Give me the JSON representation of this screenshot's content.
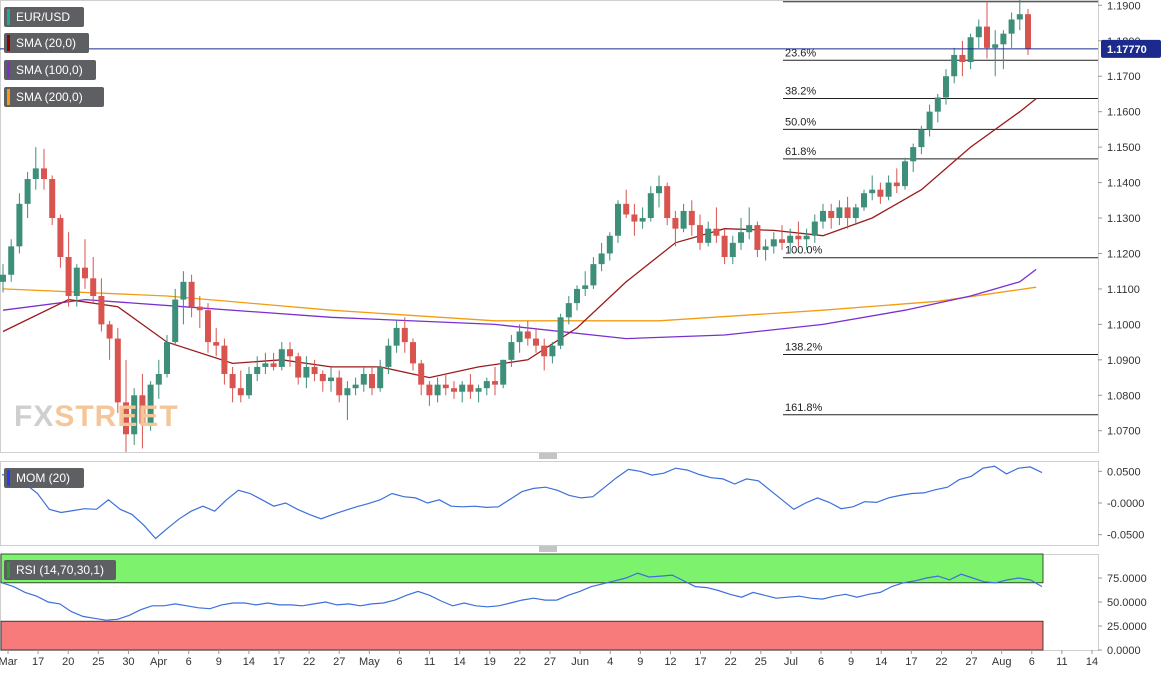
{
  "legends": {
    "main": [
      {
        "label": "EUR/USD",
        "color": "#26a69a"
      },
      {
        "label": "SMA (20,0)",
        "color": "#8b0000"
      },
      {
        "label": "SMA (100,0)",
        "color": "#7b2fd1"
      },
      {
        "label": "SMA (200,0)",
        "color": "#f39c12"
      }
    ],
    "mom": {
      "label": "MOM (20)",
      "color": "#1f3cff"
    },
    "rsi": {
      "label": "RSI (14,70,30,1)",
      "color": "#2e9e2e"
    }
  },
  "price_badge": "1.17770",
  "watermark": {
    "part1": "FX",
    "part2": "STREET"
  },
  "colors": {
    "up": "#3d8f7a",
    "down": "#d9534f",
    "sma20": "#9b1b1b",
    "sma100": "#7b2fd1",
    "sma200": "#f39c12",
    "mom": "#3d6fdc",
    "rsi": "#3d6fdc",
    "rsi_overbought": "#7df26c",
    "rsi_oversold": "#f77b7b",
    "price_line": "#1b2a8c"
  },
  "chart_data": [
    {
      "type": "candlestick",
      "title": "EUR/USD",
      "ylim": [
        1.064,
        1.1915
      ],
      "y_ticks": [
        "1.1900",
        "1.1800",
        "1.1700",
        "1.1600",
        "1.1500",
        "1.1400",
        "1.1300",
        "1.1200",
        "1.1100",
        "1.1000",
        "1.0900",
        "1.0800",
        "1.0700"
      ],
      "x_ticks": [
        "Mar",
        "17",
        "20",
        "25",
        "30",
        "Apr",
        "6",
        "9",
        "14",
        "17",
        "22",
        "27",
        "May",
        "6",
        "11",
        "14",
        "19",
        "22",
        "27",
        "Jun",
        "4",
        "9",
        "12",
        "17",
        "22",
        "25",
        "Jul",
        "6",
        "9",
        "14",
        "17",
        "22",
        "27",
        "Aug",
        "6",
        "11",
        "14"
      ],
      "fibonacci": [
        {
          "label": "23.6%",
          "value": 1.1745
        },
        {
          "label": "38.2%",
          "value": 1.1637
        },
        {
          "label": "50.0%",
          "value": 1.155
        },
        {
          "label": "61.8%",
          "value": 1.1467
        },
        {
          "label": "100.0%",
          "value": 1.1188
        },
        {
          "label": "138.2%",
          "value": 1.0915
        },
        {
          "label": "161.8%",
          "value": 1.0745
        }
      ],
      "top_level_value": 1.191,
      "current_price": 1.1777,
      "ohlc": [
        [
          1.112,
          1.117,
          1.109,
          1.114
        ],
        [
          1.114,
          1.124,
          1.112,
          1.122
        ],
        [
          1.122,
          1.137,
          1.12,
          1.134
        ],
        [
          1.134,
          1.143,
          1.13,
          1.141
        ],
        [
          1.141,
          1.15,
          1.138,
          1.144
        ],
        [
          1.144,
          1.1495,
          1.138,
          1.141
        ],
        [
          1.141,
          1.142,
          1.128,
          1.13
        ],
        [
          1.13,
          1.131,
          1.116,
          1.119
        ],
        [
          1.119,
          1.126,
          1.105,
          1.108
        ],
        [
          1.108,
          1.117,
          1.105,
          1.116
        ],
        [
          1.116,
          1.124,
          1.11,
          1.113
        ],
        [
          1.113,
          1.119,
          1.106,
          1.108
        ],
        [
          1.108,
          1.113,
          1.098,
          1.1
        ],
        [
          1.1,
          1.101,
          1.09,
          1.096
        ],
        [
          1.096,
          1.099,
          1.075,
          1.078
        ],
        [
          1.078,
          1.09,
          1.064,
          1.069
        ],
        [
          1.069,
          1.082,
          1.066,
          1.08
        ],
        [
          1.08,
          1.086,
          1.065,
          1.072
        ],
        [
          1.072,
          1.084,
          1.07,
          1.083
        ],
        [
          1.083,
          1.09,
          1.079,
          1.086
        ],
        [
          1.086,
          1.097,
          1.085,
          1.095
        ],
        [
          1.095,
          1.11,
          1.094,
          1.107
        ],
        [
          1.107,
          1.115,
          1.1,
          1.112
        ],
        [
          1.112,
          1.114,
          1.102,
          1.105
        ],
        [
          1.105,
          1.108,
          1.099,
          1.104
        ],
        [
          1.104,
          1.106,
          1.092,
          1.095
        ],
        [
          1.095,
          1.099,
          1.091,
          1.094
        ],
        [
          1.094,
          1.096,
          1.083,
          1.086
        ],
        [
          1.086,
          1.088,
          1.078,
          1.082
        ],
        [
          1.082,
          1.087,
          1.078,
          1.08
        ],
        [
          1.08,
          1.088,
          1.079,
          1.086
        ],
        [
          1.086,
          1.091,
          1.084,
          1.088
        ],
        [
          1.088,
          1.092,
          1.086,
          1.089
        ],
        [
          1.089,
          1.092,
          1.087,
          1.088
        ],
        [
          1.088,
          1.095,
          1.087,
          1.093
        ],
        [
          1.093,
          1.095,
          1.088,
          1.091
        ],
        [
          1.091,
          1.092,
          1.083,
          1.085
        ],
        [
          1.085,
          1.091,
          1.082,
          1.088
        ],
        [
          1.088,
          1.09,
          1.084,
          1.086
        ],
        [
          1.086,
          1.087,
          1.081,
          1.084
        ],
        [
          1.084,
          1.088,
          1.081,
          1.085
        ],
        [
          1.085,
          1.087,
          1.078,
          1.08
        ],
        [
          1.08,
          1.084,
          1.073,
          1.082
        ],
        [
          1.082,
          1.085,
          1.08,
          1.083
        ],
        [
          1.083,
          1.088,
          1.081,
          1.086
        ],
        [
          1.086,
          1.088,
          1.08,
          1.082
        ],
        [
          1.082,
          1.09,
          1.081,
          1.088
        ],
        [
          1.088,
          1.096,
          1.086,
          1.094
        ],
        [
          1.094,
          1.101,
          1.092,
          1.099
        ],
        [
          1.099,
          1.102,
          1.092,
          1.095
        ],
        [
          1.095,
          1.096,
          1.087,
          1.089
        ],
        [
          1.089,
          1.09,
          1.08,
          1.083
        ],
        [
          1.083,
          1.084,
          1.077,
          1.08
        ],
        [
          1.08,
          1.085,
          1.078,
          1.083
        ],
        [
          1.083,
          1.086,
          1.08,
          1.082
        ],
        [
          1.082,
          1.084,
          1.079,
          1.081
        ],
        [
          1.081,
          1.084,
          1.078,
          1.083
        ],
        [
          1.083,
          1.086,
          1.079,
          1.081
        ],
        [
          1.081,
          1.083,
          1.078,
          1.082
        ],
        [
          1.082,
          1.085,
          1.08,
          1.084
        ],
        [
          1.084,
          1.088,
          1.08,
          1.083
        ],
        [
          1.083,
          1.09,
          1.082,
          1.09
        ],
        [
          1.09,
          1.097,
          1.088,
          1.095
        ],
        [
          1.095,
          1.1,
          1.092,
          1.098
        ],
        [
          1.098,
          1.101,
          1.094,
          1.096
        ],
        [
          1.096,
          1.099,
          1.092,
          1.094
        ],
        [
          1.094,
          1.096,
          1.087,
          1.091
        ],
        [
          1.091,
          1.095,
          1.089,
          1.094
        ],
        [
          1.094,
          1.103,
          1.093,
          1.102
        ],
        [
          1.102,
          1.108,
          1.1,
          1.106
        ],
        [
          1.106,
          1.111,
          1.104,
          1.11
        ],
        [
          1.11,
          1.115,
          1.108,
          1.111
        ],
        [
          1.111,
          1.119,
          1.11,
          1.117
        ],
        [
          1.117,
          1.123,
          1.115,
          1.12
        ],
        [
          1.12,
          1.126,
          1.118,
          1.125
        ],
        [
          1.125,
          1.135,
          1.123,
          1.134
        ],
        [
          1.134,
          1.138,
          1.13,
          1.131
        ],
        [
          1.131,
          1.134,
          1.125,
          1.129
        ],
        [
          1.129,
          1.133,
          1.127,
          1.13
        ],
        [
          1.13,
          1.139,
          1.129,
          1.137
        ],
        [
          1.137,
          1.142,
          1.133,
          1.139
        ],
        [
          1.139,
          1.14,
          1.128,
          1.13
        ],
        [
          1.13,
          1.132,
          1.122,
          1.127
        ],
        [
          1.127,
          1.134,
          1.126,
          1.132
        ],
        [
          1.132,
          1.135,
          1.125,
          1.128
        ],
        [
          1.128,
          1.131,
          1.121,
          1.123
        ],
        [
          1.123,
          1.129,
          1.122,
          1.127
        ],
        [
          1.127,
          1.133,
          1.123,
          1.125
        ],
        [
          1.125,
          1.127,
          1.117,
          1.119
        ],
        [
          1.119,
          1.125,
          1.117,
          1.123
        ],
        [
          1.123,
          1.13,
          1.121,
          1.126
        ],
        [
          1.126,
          1.133,
          1.124,
          1.128
        ],
        [
          1.128,
          1.129,
          1.119,
          1.121
        ],
        [
          1.121,
          1.124,
          1.118,
          1.122
        ],
        [
          1.122,
          1.126,
          1.12,
          1.124
        ],
        [
          1.124,
          1.128,
          1.121,
          1.123
        ],
        [
          1.123,
          1.127,
          1.12,
          1.125
        ],
        [
          1.125,
          1.129,
          1.122,
          1.124
        ],
        [
          1.124,
          1.127,
          1.121,
          1.125
        ],
        [
          1.125,
          1.131,
          1.123,
          1.129
        ],
        [
          1.129,
          1.134,
          1.127,
          1.132
        ],
        [
          1.132,
          1.134,
          1.127,
          1.13
        ],
        [
          1.13,
          1.135,
          1.128,
          1.133
        ],
        [
          1.133,
          1.136,
          1.127,
          1.13
        ],
        [
          1.13,
          1.134,
          1.128,
          1.133
        ],
        [
          1.133,
          1.138,
          1.132,
          1.137
        ],
        [
          1.137,
          1.142,
          1.135,
          1.138
        ],
        [
          1.138,
          1.14,
          1.134,
          1.136
        ],
        [
          1.136,
          1.142,
          1.135,
          1.14
        ],
        [
          1.14,
          1.144,
          1.137,
          1.139
        ],
        [
          1.139,
          1.147,
          1.138,
          1.146
        ],
        [
          1.146,
          1.151,
          1.143,
          1.15
        ],
        [
          1.15,
          1.156,
          1.148,
          1.155
        ],
        [
          1.155,
          1.162,
          1.153,
          1.16
        ],
        [
          1.16,
          1.165,
          1.157,
          1.164
        ],
        [
          1.164,
          1.172,
          1.162,
          1.17
        ],
        [
          1.17,
          1.178,
          1.168,
          1.176
        ],
        [
          1.176,
          1.18,
          1.17,
          1.174
        ],
        [
          1.174,
          1.182,
          1.172,
          1.181
        ],
        [
          1.181,
          1.186,
          1.178,
          1.184
        ],
        [
          1.184,
          1.191,
          1.175,
          1.178
        ],
        [
          1.178,
          1.183,
          1.17,
          1.179
        ],
        [
          1.179,
          1.183,
          1.172,
          1.182
        ],
        [
          1.182,
          1.188,
          1.178,
          1.186
        ],
        [
          1.186,
          1.1915,
          1.183,
          1.1875
        ],
        [
          1.1875,
          1.189,
          1.176,
          1.1777
        ]
      ],
      "sma20_anchors": [
        [
          0,
          1.098
        ],
        [
          8,
          1.107
        ],
        [
          14,
          1.105
        ],
        [
          20,
          1.095
        ],
        [
          28,
          1.089
        ],
        [
          34,
          1.09
        ],
        [
          40,
          1.088
        ],
        [
          46,
          1.088
        ],
        [
          52,
          1.085
        ],
        [
          58,
          1.088
        ],
        [
          64,
          1.09
        ],
        [
          70,
          1.099
        ],
        [
          76,
          1.112
        ],
        [
          82,
          1.123
        ],
        [
          88,
          1.127
        ],
        [
          94,
          1.1265
        ],
        [
          100,
          1.125
        ],
        [
          106,
          1.13
        ],
        [
          112,
          1.138
        ],
        [
          118,
          1.15
        ],
        [
          124,
          1.16
        ],
        [
          126,
          1.1637
        ]
      ],
      "sma100_anchors": [
        [
          0,
          1.104
        ],
        [
          10,
          1.107
        ],
        [
          22,
          1.105
        ],
        [
          40,
          1.102
        ],
        [
          60,
          1.1
        ],
        [
          76,
          1.096
        ],
        [
          88,
          1.097
        ],
        [
          100,
          1.1
        ],
        [
          110,
          1.104
        ],
        [
          118,
          1.108
        ],
        [
          124,
          1.112
        ],
        [
          126,
          1.1155
        ]
      ],
      "sma200_anchors": [
        [
          0,
          1.11
        ],
        [
          20,
          1.108
        ],
        [
          40,
          1.104
        ],
        [
          60,
          1.101
        ],
        [
          80,
          1.101
        ],
        [
          100,
          1.104
        ],
        [
          114,
          1.1065
        ],
        [
          126,
          1.1105
        ]
      ]
    },
    {
      "type": "line",
      "title": "MOM (20)",
      "ylim": [
        -0.06,
        0.06
      ],
      "y_ticks": [
        "0.0500",
        "-0.0000",
        "-0.0500"
      ],
      "values": [
        0.045,
        0.04,
        0.03,
        0.015,
        -0.01,
        -0.015,
        -0.012,
        -0.009,
        -0.01,
        0.005,
        -0.01,
        -0.018,
        -0.035,
        -0.056,
        -0.04,
        -0.025,
        -0.013,
        -0.005,
        -0.013,
        0.005,
        0.02,
        0.015,
        0.005,
        -0.005,
        0.0,
        -0.01,
        -0.018,
        -0.025,
        -0.018,
        -0.012,
        -0.006,
        -0.001,
        0.005,
        0.015,
        0.01,
        0.008,
        0.0,
        0.005,
        -0.005,
        -0.006,
        -0.005,
        -0.007,
        -0.006,
        0.006,
        0.018,
        0.023,
        0.025,
        0.02,
        0.012,
        0.008,
        0.01,
        0.025,
        0.04,
        0.053,
        0.05,
        0.044,
        0.047,
        0.055,
        0.052,
        0.045,
        0.04,
        0.038,
        0.03,
        0.038,
        0.035,
        0.02,
        0.005,
        -0.01,
        0.0,
        0.008,
        0.001,
        -0.009,
        -0.006,
        0.002,
        0.001,
        0.008,
        0.012,
        0.015,
        0.016,
        0.021,
        0.025,
        0.037,
        0.042,
        0.055,
        0.058,
        0.046,
        0.055,
        0.057,
        0.048
      ],
      "line_color": "#3d6fdc"
    },
    {
      "type": "line",
      "title": "RSI (14,70,30,1)",
      "ylim": [
        0,
        100
      ],
      "y_ticks": [
        "75.0000",
        "50.0000",
        "25.0000",
        "0.0000"
      ],
      "zones": {
        "overbought": [
          70,
          100
        ],
        "oversold": [
          0,
          30
        ]
      },
      "values": [
        70,
        66,
        60,
        56,
        50,
        48,
        40,
        35,
        33,
        31,
        32,
        36,
        42,
        46,
        46,
        48,
        46,
        44,
        43,
        47,
        49,
        49,
        47,
        49,
        47,
        47,
        46,
        48,
        50,
        47,
        48,
        46,
        48,
        49,
        52,
        57,
        61,
        57,
        51,
        46,
        49,
        46,
        45,
        46,
        49,
        52,
        54,
        52,
        52,
        57,
        61,
        66,
        69,
        72,
        75,
        80,
        76,
        77,
        78,
        72,
        66,
        65,
        62,
        58,
        55,
        60,
        57,
        54,
        55,
        56,
        54,
        53,
        56,
        58,
        55,
        58,
        60,
        66,
        70,
        72,
        75,
        77,
        73,
        79,
        75,
        71,
        70,
        73,
        75,
        73,
        66
      ]
    }
  ]
}
